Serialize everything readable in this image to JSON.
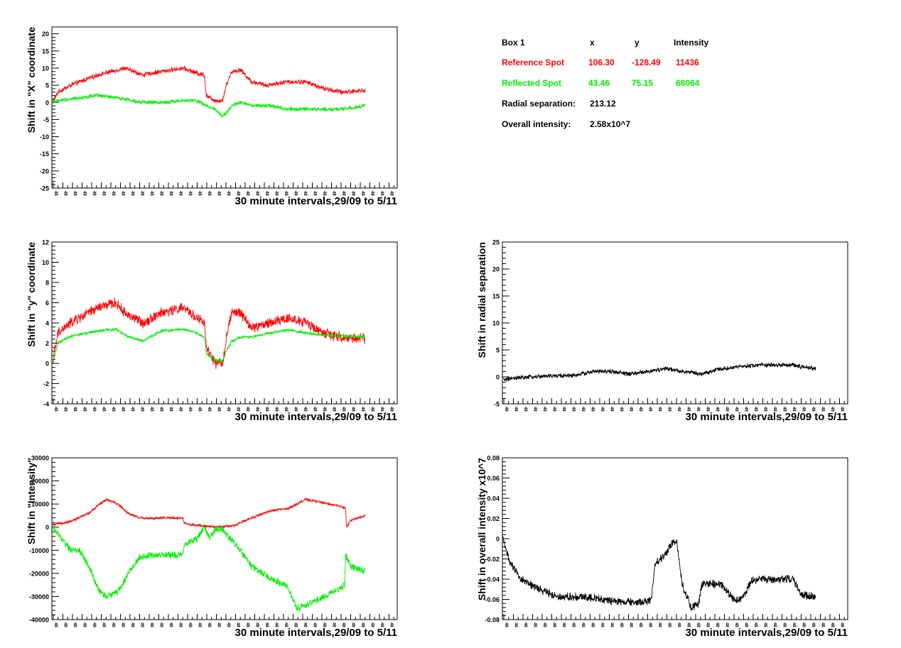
{
  "info": {
    "box": "Box 1",
    "col_x": "x",
    "col_y": "y",
    "col_intensity": "Intensity",
    "ref_label": "Reference Spot",
    "ref_x": "106.30",
    "ref_y": "-128.49",
    "ref_intensity": "11436",
    "refl_label": "Reflected Spot",
    "refl_x": "43.46",
    "refl_y": "75.15",
    "refl_intensity": "68064",
    "radial_label": "Radial separation:",
    "radial_value": "213.12",
    "overall_label": "Overall intensity:",
    "overall_value": "2.58x10^7",
    "colors": {
      "reference": "#ff0000",
      "reflected": "#00ee00",
      "neutral": "#000000"
    }
  },
  "chart_data": [
    {
      "id": "x-shift",
      "type": "line",
      "ylabel": "Shift in \"X\" coordinate",
      "xlabel": "30 minute intervals,29/09 to 5/11",
      "xtick_label": "48",
      "ylim": [
        -25,
        22
      ],
      "yticks": [
        -25,
        -20,
        -15,
        -10,
        -5,
        0,
        5,
        10,
        15,
        20
      ],
      "x_range": [
        0,
        1728
      ],
      "series": [
        {
          "color": "#ff0000",
          "noise": 0.6,
          "knots": [
            [
              0,
              0
            ],
            [
              30,
              3
            ],
            [
              100,
              5
            ],
            [
              250,
              8
            ],
            [
              400,
              10
            ],
            [
              500,
              8
            ],
            [
              600,
              9
            ],
            [
              720,
              10
            ],
            [
              800,
              8.5
            ],
            [
              840,
              8
            ],
            [
              850,
              2
            ],
            [
              900,
              0.5
            ],
            [
              940,
              0.5
            ],
            [
              960,
              5
            ],
            [
              990,
              9
            ],
            [
              1040,
              9.5
            ],
            [
              1100,
              6
            ],
            [
              1180,
              5
            ],
            [
              1300,
              6
            ],
            [
              1400,
              6
            ],
            [
              1500,
              4
            ],
            [
              1600,
              3
            ],
            [
              1728,
              3.5
            ]
          ]
        },
        {
          "color": "#00ee00",
          "noise": 0.5,
          "knots": [
            [
              0,
              0
            ],
            [
              30,
              0.5
            ],
            [
              100,
              1
            ],
            [
              250,
              2
            ],
            [
              400,
              1
            ],
            [
              500,
              0
            ],
            [
              600,
              0
            ],
            [
              720,
              0.5
            ],
            [
              800,
              0.5
            ],
            [
              850,
              -1
            ],
            [
              900,
              -2
            ],
            [
              940,
              -4
            ],
            [
              960,
              -3
            ],
            [
              990,
              -1
            ],
            [
              1040,
              0
            ],
            [
              1100,
              -1
            ],
            [
              1200,
              -1
            ],
            [
              1300,
              -2
            ],
            [
              1400,
              -2
            ],
            [
              1500,
              -2
            ],
            [
              1600,
              -2
            ],
            [
              1728,
              -1
            ]
          ]
        }
      ]
    },
    {
      "id": "y-shift",
      "type": "line",
      "ylabel": "Shift in \"y\" coordinate",
      "xlabel": "30 minute intervals,29/09 to 5/11",
      "xtick_label": "48",
      "ylim": [
        -4,
        12
      ],
      "yticks": [
        -4,
        -2,
        0,
        2,
        4,
        6,
        8,
        10,
        12
      ],
      "x_range": [
        0,
        1728
      ],
      "series": [
        {
          "color": "#ff0000",
          "noise": 0.45,
          "knots": [
            [
              0,
              0
            ],
            [
              30,
              3
            ],
            [
              100,
              4
            ],
            [
              250,
              5.5
            ],
            [
              350,
              6
            ],
            [
              400,
              5
            ],
            [
              500,
              4
            ],
            [
              600,
              5
            ],
            [
              720,
              5.5
            ],
            [
              800,
              4.5
            ],
            [
              840,
              4
            ],
            [
              850,
              1.5
            ],
            [
              900,
              0
            ],
            [
              940,
              0
            ],
            [
              960,
              2.5
            ],
            [
              990,
              5
            ],
            [
              1040,
              5
            ],
            [
              1100,
              3.5
            ],
            [
              1200,
              4
            ],
            [
              1300,
              4.5
            ],
            [
              1400,
              4
            ],
            [
              1500,
              3
            ],
            [
              1600,
              2.5
            ],
            [
              1728,
              2.5
            ]
          ]
        },
        {
          "color": "#00ee00",
          "noise": 0.12,
          "knots": [
            [
              0,
              0
            ],
            [
              30,
              2
            ],
            [
              100,
              2.7
            ],
            [
              250,
              3.2
            ],
            [
              350,
              3.4
            ],
            [
              400,
              2.8
            ],
            [
              500,
              2.2
            ],
            [
              600,
              3.2
            ],
            [
              720,
              3.4
            ],
            [
              800,
              3
            ],
            [
              840,
              2.5
            ],
            [
              850,
              1
            ],
            [
              900,
              0.3
            ],
            [
              940,
              0.2
            ],
            [
              960,
              1.2
            ],
            [
              990,
              2.2
            ],
            [
              1040,
              2.6
            ],
            [
              1100,
              2.6
            ],
            [
              1200,
              3
            ],
            [
              1300,
              3.3
            ],
            [
              1400,
              3
            ],
            [
              1500,
              2.8
            ],
            [
              1600,
              2.7
            ],
            [
              1728,
              2.6
            ]
          ]
        }
      ]
    },
    {
      "id": "intensity-shift",
      "type": "line",
      "ylabel": "Shift in \"Intensity\"",
      "xlabel": "30 minute intervals,29/09 to 5/11",
      "xtick_label": "48",
      "ylim": [
        -40000,
        30000
      ],
      "yticks": [
        -40000,
        -30000,
        -20000,
        -10000,
        0,
        10000,
        20000,
        30000
      ],
      "x_range": [
        0,
        1728
      ],
      "series": [
        {
          "color": "#ff0000",
          "noise": 500,
          "knots": [
            [
              0,
              1000
            ],
            [
              100,
              2500
            ],
            [
              200,
              6000
            ],
            [
              260,
              10000
            ],
            [
              300,
              12000
            ],
            [
              360,
              10000
            ],
            [
              420,
              6000
            ],
            [
              480,
              4000
            ],
            [
              560,
              3800
            ],
            [
              620,
              4000
            ],
            [
              700,
              4000
            ],
            [
              720,
              4000
            ],
            [
              730,
              1500
            ],
            [
              800,
              800
            ],
            [
              900,
              0
            ],
            [
              1000,
              500
            ],
            [
              1100,
              4000
            ],
            [
              1200,
              7000
            ],
            [
              1300,
              8000
            ],
            [
              1400,
              12000
            ],
            [
              1500,
              10500
            ],
            [
              1600,
              9000
            ],
            [
              1620,
              8000
            ],
            [
              1625,
              0
            ],
            [
              1650,
              3000
            ],
            [
              1728,
              5000
            ]
          ]
        },
        {
          "color": "#00ee00",
          "noise": 1300,
          "knots": [
            [
              0,
              0
            ],
            [
              50,
              -5000
            ],
            [
              100,
              -10000
            ],
            [
              150,
              -10000
            ],
            [
              200,
              -17000
            ],
            [
              260,
              -28000
            ],
            [
              300,
              -30000
            ],
            [
              360,
              -28000
            ],
            [
              420,
              -20000
            ],
            [
              480,
              -13000
            ],
            [
              560,
              -12000
            ],
            [
              620,
              -12000
            ],
            [
              720,
              -12000
            ],
            [
              730,
              -7000
            ],
            [
              800,
              -5000
            ],
            [
              840,
              0
            ],
            [
              870,
              -5000
            ],
            [
              900,
              -1000
            ],
            [
              940,
              -1000
            ],
            [
              960,
              -3000
            ],
            [
              1040,
              -10000
            ],
            [
              1100,
              -17000
            ],
            [
              1200,
              -22000
            ],
            [
              1300,
              -26000
            ],
            [
              1350,
              -35000
            ],
            [
              1400,
              -34000
            ],
            [
              1500,
              -30000
            ],
            [
              1600,
              -26000
            ],
            [
              1615,
              -25000
            ],
            [
              1620,
              -12000
            ],
            [
              1650,
              -17000
            ],
            [
              1728,
              -19000
            ]
          ]
        }
      ]
    },
    {
      "id": "radial-shift",
      "type": "line",
      "ylabel": "Shift in radial separation",
      "xlabel": "30 minute intervals,29/09 to 5/11",
      "xtick_label": "48",
      "ylim": [
        -5,
        25
      ],
      "yticks": [
        -5,
        0,
        5,
        10,
        15,
        20,
        25
      ],
      "x_range": [
        0,
        1728
      ],
      "series": [
        {
          "color": "#000000",
          "noise": 0.35,
          "knots": [
            [
              0,
              -0.5
            ],
            [
              150,
              0
            ],
            [
              300,
              0.2
            ],
            [
              400,
              0.3
            ],
            [
              500,
              1
            ],
            [
              600,
              1
            ],
            [
              700,
              0.5
            ],
            [
              800,
              1
            ],
            [
              900,
              1.5
            ],
            [
              1000,
              1
            ],
            [
              1100,
              0.5
            ],
            [
              1200,
              1.5
            ],
            [
              1300,
              1.8
            ],
            [
              1400,
              2.2
            ],
            [
              1600,
              2.2
            ],
            [
              1728,
              1.5
            ]
          ]
        }
      ]
    },
    {
      "id": "overall-intensity-shift",
      "type": "line",
      "ylabel": "Shift in overall intensity x10^7",
      "xlabel": "30 minute intervals,29/09 to 5/11",
      "xtick_label": "48",
      "ylim": [
        -0.08,
        0.08
      ],
      "yticks": [
        -0.08,
        -0.06,
        -0.04,
        -0.02,
        0,
        0.02,
        0.04,
        0.06,
        0.08
      ],
      "x_range": [
        0,
        1728
      ],
      "series": [
        {
          "color": "#000000",
          "noise": 0.0035,
          "knots": [
            [
              0,
              0
            ],
            [
              40,
              -0.025
            ],
            [
              100,
              -0.04
            ],
            [
              200,
              -0.05
            ],
            [
              300,
              -0.057
            ],
            [
              500,
              -0.058
            ],
            [
              600,
              -0.062
            ],
            [
              720,
              -0.063
            ],
            [
              800,
              -0.062
            ],
            [
              820,
              -0.06
            ],
            [
              840,
              -0.025
            ],
            [
              900,
              -0.015
            ],
            [
              940,
              -0.002
            ],
            [
              960,
              -0.003
            ],
            [
              990,
              -0.045
            ],
            [
              1040,
              -0.068
            ],
            [
              1080,
              -0.065
            ],
            [
              1100,
              -0.045
            ],
            [
              1200,
              -0.045
            ],
            [
              1280,
              -0.06
            ],
            [
              1320,
              -0.06
            ],
            [
              1380,
              -0.04
            ],
            [
              1500,
              -0.04
            ],
            [
              1600,
              -0.04
            ],
            [
              1650,
              -0.055
            ],
            [
              1728,
              -0.058
            ]
          ]
        }
      ]
    }
  ]
}
